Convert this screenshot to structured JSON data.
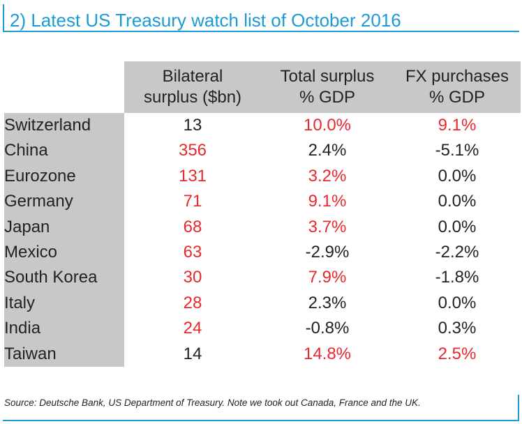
{
  "title": "2) Latest US Treasury watch list of October 2016",
  "colors": {
    "accent": "#1a9bd7",
    "highlight_red": "#e8282d",
    "header_grey": "#c8c8c8"
  },
  "columns": [
    {
      "line1": "Bilateral",
      "line2": "surplus ($bn)"
    },
    {
      "line1": "Total surplus",
      "line2": "% GDP"
    },
    {
      "line1": "FX purchases",
      "line2": "% GDP"
    }
  ],
  "rows": [
    {
      "country": "Switzerland",
      "bilateral": "13",
      "total": "10.0%",
      "fx": "9.1%",
      "red": [
        false,
        true,
        true
      ]
    },
    {
      "country": "China",
      "bilateral": "356",
      "total": "2.4%",
      "fx": "-5.1%",
      "red": [
        true,
        false,
        false
      ]
    },
    {
      "country": "Eurozone",
      "bilateral": "131",
      "total": "3.2%",
      "fx": "0.0%",
      "red": [
        true,
        true,
        false
      ]
    },
    {
      "country": "Germany",
      "bilateral": "71",
      "total": "9.1%",
      "fx": "0.0%",
      "red": [
        true,
        true,
        false
      ]
    },
    {
      "country": "Japan",
      "bilateral": "68",
      "total": "3.7%",
      "fx": "0.0%",
      "red": [
        true,
        true,
        false
      ]
    },
    {
      "country": "Mexico",
      "bilateral": "63",
      "total": "-2.9%",
      "fx": "-2.2%",
      "red": [
        true,
        false,
        false
      ]
    },
    {
      "country": "South Korea",
      "bilateral": "30",
      "total": "7.9%",
      "fx": "-1.8%",
      "red": [
        true,
        true,
        false
      ]
    },
    {
      "country": "Italy",
      "bilateral": "28",
      "total": "2.3%",
      "fx": "0.0%",
      "red": [
        true,
        false,
        false
      ]
    },
    {
      "country": "India",
      "bilateral": "24",
      "total": "-0.8%",
      "fx": "0.3%",
      "red": [
        true,
        false,
        false
      ]
    },
    {
      "country": "Taiwan",
      "bilateral": "14",
      "total": "14.8%",
      "fx": "2.5%",
      "red": [
        false,
        true,
        true
      ]
    }
  ],
  "source": "Source: Deutsche Bank, US Department of Treasury. Note we took out Canada, France and the UK."
}
